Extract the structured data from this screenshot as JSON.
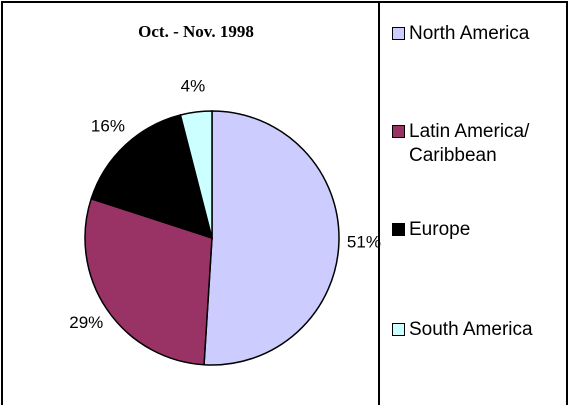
{
  "chart_data": {
    "type": "pie",
    "title": "Oct. - Nov. 1998",
    "categories": [
      "North America",
      "Latin America/ Caribbean",
      "Europe",
      "South America"
    ],
    "values": [
      51,
      29,
      16,
      4
    ],
    "value_labels": [
      "51%",
      "29%",
      "16%",
      "4%"
    ],
    "colors": [
      "#ccccff",
      "#993366",
      "#000000",
      "#ccffff"
    ]
  }
}
